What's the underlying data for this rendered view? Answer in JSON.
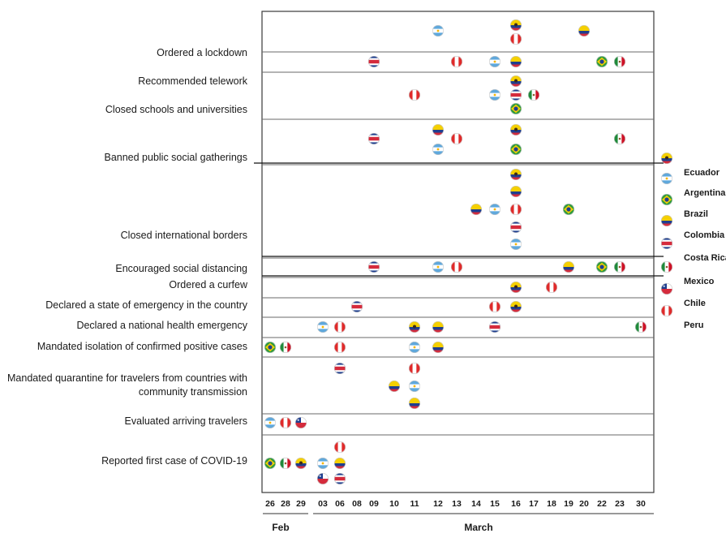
{
  "chart_data": {
    "type": "scatter",
    "x_ticks": [
      "26",
      "28",
      "29",
      "03",
      "06",
      "08",
      "09",
      "10",
      "11",
      "12",
      "13",
      "14",
      "15",
      "16",
      "17",
      "18",
      "19",
      "20",
      "22",
      "23",
      "30"
    ],
    "x_groups": [
      {
        "label": "Feb",
        "ticks": [
          "26",
          "28",
          "29"
        ]
      },
      {
        "label": "March",
        "ticks": [
          "03",
          "06",
          "08",
          "09",
          "10",
          "11",
          "12",
          "13",
          "14",
          "15",
          "16",
          "17",
          "18",
          "19",
          "20",
          "22",
          "23",
          "30"
        ]
      }
    ],
    "countries": [
      "Ecuador",
      "Argentina",
      "Brazil",
      "Colombia",
      "Costa Rica",
      "Mexico",
      "Chile",
      "Peru"
    ],
    "legend_labels": [
      "Ecuador",
      "Argentina",
      "Brazil",
      "Colombia",
      "Costa Rica",
      "Mexico",
      "Chile",
      "Peru"
    ],
    "colors": {
      "Ecuador": "#f5d000",
      "Argentina": "#5fa8dc",
      "Brazil": "#2e9b3e",
      "Colombia": "#f5d000",
      "Costa Rica": "#d52b3c",
      "Mexico": "#ce1126",
      "Chile": "#d52b3c",
      "Peru": "#e02a2a",
      "blue": "#1f3f8f"
    },
    "measures": [
      {
        "label": "",
        "points": [
          {
            "country": "Argentina",
            "date": "12"
          },
          {
            "country": "Ecuador",
            "date": "16"
          },
          {
            "country": "Peru",
            "date": "16"
          },
          {
            "country": "Colombia",
            "date": "20"
          }
        ]
      },
      {
        "label": "Ordered a lockdown",
        "points": [
          {
            "country": "Costa Rica",
            "date": "09"
          },
          {
            "country": "Peru",
            "date": "13"
          },
          {
            "country": "Argentina",
            "date": "15"
          },
          {
            "country": "Colombia",
            "date": "16"
          },
          {
            "country": "Brazil",
            "date": "22"
          },
          {
            "country": "Mexico",
            "date": "23"
          }
        ]
      },
      {
        "label": "Recommended telework",
        "points": [
          {
            "country": "Ecuador",
            "date": "16"
          },
          {
            "country": "Peru",
            "date": "11"
          },
          {
            "country": "Argentina",
            "date": "15"
          },
          {
            "country": "Costa Rica",
            "date": "16"
          },
          {
            "country": "Mexico",
            "date": "17"
          },
          {
            "country": "Brazil",
            "date": "16"
          }
        ]
      },
      {
        "label": "Closed schools and universities",
        "points": []
      },
      {
        "label": "Banned public social gatherings",
        "points": [
          {
            "country": "Costa Rica",
            "date": "09"
          },
          {
            "country": "Colombia",
            "date": "12"
          },
          {
            "country": "Argentina",
            "date": "12"
          },
          {
            "country": "Peru",
            "date": "13"
          },
          {
            "country": "Ecuador",
            "date": "16"
          },
          {
            "country": "Brazil",
            "date": "16"
          },
          {
            "country": "Mexico",
            "date": "23"
          }
        ]
      },
      {
        "label": "Closed international borders",
        "points": [
          {
            "country": "Ecuador",
            "date": "16"
          },
          {
            "country": "Colombia",
            "date": "16"
          },
          {
            "country": "Colombia",
            "date": "14"
          },
          {
            "country": "Argentina",
            "date": "15"
          },
          {
            "country": "Peru",
            "date": "16"
          },
          {
            "country": "Brazil",
            "date": "19"
          },
          {
            "country": "Costa Rica",
            "date": "16"
          },
          {
            "country": "Argentina",
            "date": "16"
          }
        ]
      },
      {
        "label": "Encouraged social distancing",
        "points": [
          {
            "country": "Costa Rica",
            "date": "09"
          },
          {
            "country": "Argentina",
            "date": "12"
          },
          {
            "country": "Peru",
            "date": "13"
          },
          {
            "country": "Colombia",
            "date": "19"
          },
          {
            "country": "Brazil",
            "date": "22"
          },
          {
            "country": "Mexico",
            "date": "23"
          }
        ]
      },
      {
        "label": "Ordered a curfew",
        "points": [
          {
            "country": "Ecuador",
            "date": "16"
          },
          {
            "country": "Peru",
            "date": "18"
          }
        ]
      },
      {
        "label": "Declared a state of emergency in the country",
        "points": [
          {
            "country": "Costa Rica",
            "date": "08"
          },
          {
            "country": "Peru",
            "date": "15"
          },
          {
            "country": "Ecuador",
            "date": "16"
          }
        ]
      },
      {
        "label": "Declared a national health emergency",
        "points": [
          {
            "country": "Argentina",
            "date": "03"
          },
          {
            "country": "Peru",
            "date": "06"
          },
          {
            "country": "Ecuador",
            "date": "11"
          },
          {
            "country": "Colombia",
            "date": "12"
          },
          {
            "country": "Costa Rica",
            "date": "15"
          },
          {
            "country": "Mexico",
            "date": "30"
          }
        ]
      },
      {
        "label": "Mandated isolation of confirmed positive cases",
        "points": [
          {
            "country": "Brazil",
            "date": "26"
          },
          {
            "country": "Mexico",
            "date": "28"
          },
          {
            "country": "Peru",
            "date": "06"
          },
          {
            "country": "Argentina",
            "date": "11"
          },
          {
            "country": "Colombia",
            "date": "12"
          }
        ]
      },
      {
        "label": "Mandated quarantine for travelers from countries with community transmission",
        "label_lines": [
          "Mandated quarantine for travelers from countries with",
          "community transmission"
        ],
        "points": [
          {
            "country": "Costa Rica",
            "date": "06"
          },
          {
            "country": "Peru",
            "date": "11"
          },
          {
            "country": "Colombia",
            "date": "10"
          },
          {
            "country": "Argentina",
            "date": "11"
          },
          {
            "country": "Colombia",
            "date": "11"
          }
        ]
      },
      {
        "label": "Evaluated arriving travelers",
        "points": [
          {
            "country": "Argentina",
            "date": "26"
          },
          {
            "country": "Peru",
            "date": "28"
          },
          {
            "country": "Chile",
            "date": "29"
          }
        ]
      },
      {
        "label": "Reported first case of COVID-19",
        "points": [
          {
            "country": "Brazil",
            "date": "26"
          },
          {
            "country": "Mexico",
            "date": "28"
          },
          {
            "country": "Ecuador",
            "date": "29"
          },
          {
            "country": "Argentina",
            "date": "03"
          },
          {
            "country": "Chile",
            "date": "03"
          },
          {
            "country": "Peru",
            "date": "06"
          },
          {
            "country": "Colombia",
            "date": "06"
          },
          {
            "country": "Costa Rica",
            "date": "06"
          }
        ]
      }
    ]
  }
}
